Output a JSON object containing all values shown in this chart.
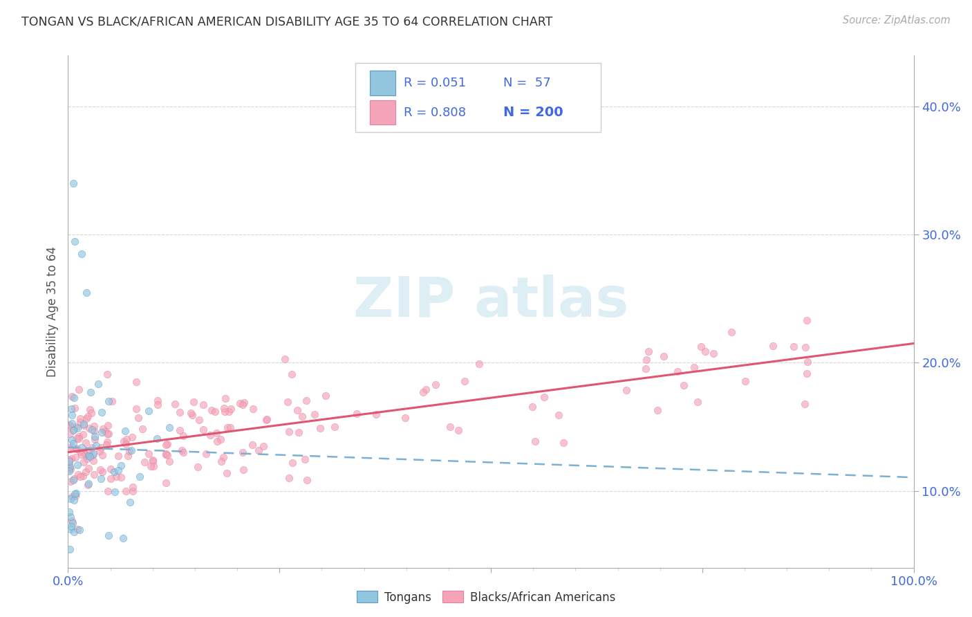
{
  "title": "TONGAN VS BLACK/AFRICAN AMERICAN DISABILITY AGE 35 TO 64 CORRELATION CHART",
  "source": "Source: ZipAtlas.com",
  "ylabel": "Disability Age 35 to 64",
  "yticks": [
    "10.0%",
    "20.0%",
    "30.0%",
    "40.0%"
  ],
  "ytick_values": [
    0.1,
    0.2,
    0.3,
    0.4
  ],
  "legend_label1": "Tongans",
  "legend_label2": "Blacks/African Americans",
  "R1": 0.051,
  "N1": 57,
  "R2": 0.808,
  "N2": 200,
  "color1": "#92c5de",
  "color2": "#f4a3b8",
  "color1_edge": "#5b9dc9",
  "color2_edge": "#e87fa0",
  "trendline1_color": "#7ab0d4",
  "trendline2_color": "#e05570",
  "watermark_color": "#ddeef5",
  "background_color": "#ffffff",
  "grid_color": "#cccccc",
  "title_color": "#333333",
  "axis_label_color": "#4169e1",
  "source_color": "#aaaaaa",
  "ylabel_color": "#555555",
  "xlim": [
    0.0,
    1.0
  ],
  "ylim": [
    0.04,
    0.44
  ]
}
